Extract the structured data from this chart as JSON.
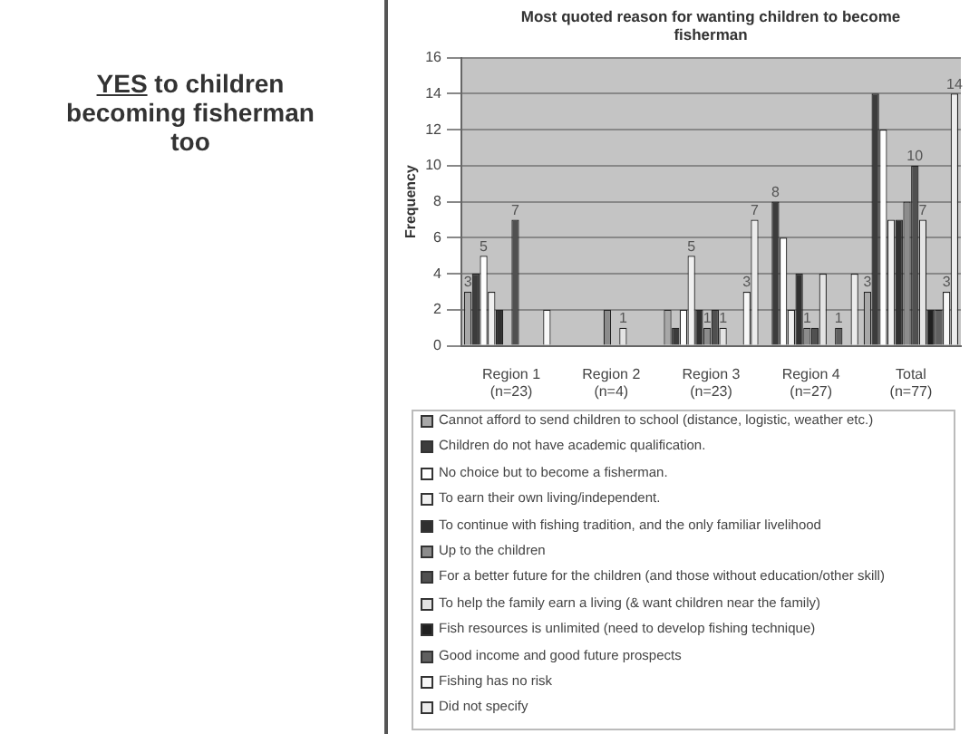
{
  "chart_data": {
    "type": "bar",
    "title": "Most quoted reason for wanting children to become fisherman",
    "ylabel": "Frequency",
    "annotations": [
      "YES to children becoming fisherman too"
    ],
    "categories": [
      "Region 1 (n=23)",
      "Region 2 (n=4)",
      "Region 3 (n=23)",
      "Region 4 (n=27)",
      "Total (n=77)"
    ],
    "ylim": [
      0,
      16
    ],
    "yticks": [
      0,
      2,
      4,
      6,
      8,
      10,
      12,
      14,
      16
    ],
    "grid": "y",
    "legend": "bottom",
    "series": [
      {
        "name": "Cannot afford to send children to school (distance, logistic, weather etc.)",
        "color": "#a8a8a8",
        "values": [
          3,
          0,
          2,
          0,
          3
        ],
        "value_labels": [
          "3",
          null,
          null,
          null,
          "3"
        ]
      },
      {
        "name": "Children do not have academic qualification.",
        "color": "#3c3c3c",
        "values": [
          4,
          0,
          1,
          8,
          14
        ],
        "value_labels": [
          null,
          null,
          null,
          "8",
          null
        ]
      },
      {
        "name": "No choice but to become a fisherman.",
        "color": "#ffffff",
        "values": [
          5,
          0,
          2,
          6,
          12
        ],
        "value_labels": [
          "5",
          null,
          null,
          null,
          null
        ]
      },
      {
        "name": "To earn their own living/independent.",
        "color": "#f0f0f0",
        "values": [
          3,
          0,
          5,
          2,
          7
        ],
        "value_labels": [
          null,
          null,
          "5",
          null,
          null
        ]
      },
      {
        "name": "To continue with fishing tradition, and the only familiar livelihood",
        "color": "#303030",
        "values": [
          2,
          0,
          2,
          4,
          7
        ],
        "value_labels": [
          null,
          null,
          null,
          null,
          null
        ]
      },
      {
        "name": "Up to the children",
        "color": "#8c8c8c",
        "values": [
          0,
          2,
          1,
          1,
          8
        ],
        "value_labels": [
          null,
          null,
          "1",
          "1",
          null
        ]
      },
      {
        "name": "For a better future for the children (and those without education/other skill)",
        "color": "#505050",
        "values": [
          7,
          0,
          2,
          1,
          10
        ],
        "value_labels": [
          "7",
          null,
          null,
          null,
          "10"
        ]
      },
      {
        "name": "To help the family earn a living (& want children near the family)",
        "color": "#e4e4e4",
        "values": [
          0,
          1,
          1,
          4,
          7
        ],
        "value_labels": [
          null,
          "1",
          "1",
          null,
          "7"
        ]
      },
      {
        "name": "Fish resources is unlimited (need to develop fishing technique)",
        "color": "#202020",
        "values": [
          0,
          0,
          0,
          0,
          2
        ],
        "value_labels": [
          null,
          null,
          null,
          null,
          null
        ]
      },
      {
        "name": "Good income and good future prospects",
        "color": "#606060",
        "values": [
          0,
          0,
          0,
          1,
          2
        ],
        "value_labels": [
          null,
          null,
          null,
          "1",
          null
        ]
      },
      {
        "name": "Fishing has no risk",
        "color": "#f8f8f8",
        "values": [
          2,
          0,
          3,
          0,
          3
        ],
        "value_labels": [
          null,
          null,
          "3",
          null,
          "3"
        ]
      },
      {
        "name": "Did not specify",
        "color": "#ececec",
        "values": [
          0,
          0,
          7,
          4,
          14
        ],
        "value_labels": [
          null,
          null,
          "7",
          null,
          "14"
        ]
      }
    ]
  }
}
